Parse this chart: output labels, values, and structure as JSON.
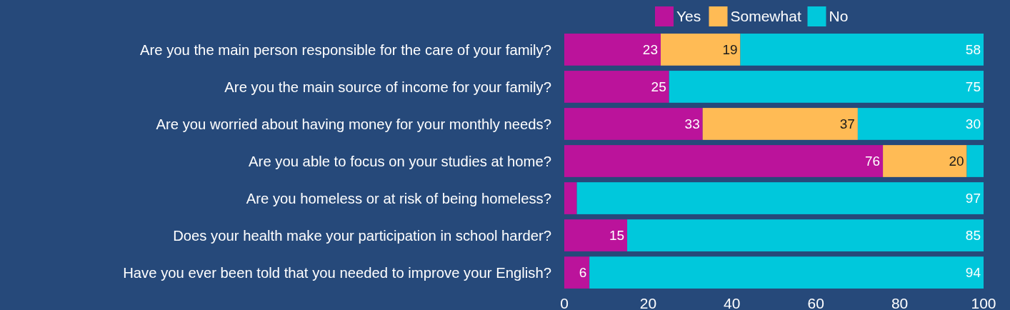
{
  "chart_data": {
    "type": "bar",
    "orientation": "horizontal",
    "stacked": true,
    "categories": [
      "Are you the main person responsible for the care of your family?",
      "Are you the main source of income for your family?",
      "Are you worried about having money for your monthly needs?",
      "Are you able to focus on your studies at home?",
      "Are you homeless or at risk of being homeless?",
      "Does your health make your participation in school harder?",
      "Have you ever been told that you needed to improve your English?"
    ],
    "series": [
      {
        "name": "Yes",
        "color": "#bb139b",
        "values": [
          23,
          25,
          33,
          76,
          3,
          15,
          6
        ],
        "value_labels": [
          "23",
          "25",
          "33",
          "76",
          null,
          "15",
          "6"
        ]
      },
      {
        "name": "Somewhat",
        "color": "#ffbb55",
        "values": [
          19,
          0,
          37,
          20,
          0,
          0,
          0
        ],
        "value_labels": [
          "19",
          null,
          "37",
          "20",
          null,
          null,
          null
        ]
      },
      {
        "name": "No",
        "color": "#00c8dc",
        "values": [
          58,
          75,
          30,
          4,
          97,
          85,
          94
        ],
        "value_labels": [
          "58",
          "75",
          "30",
          null,
          "97",
          "85",
          "94"
        ]
      }
    ],
    "xlim": [
      0,
      100
    ],
    "xticks": [
      0,
      20,
      40,
      60,
      80,
      100
    ],
    "legend": "top",
    "grid": false
  }
}
